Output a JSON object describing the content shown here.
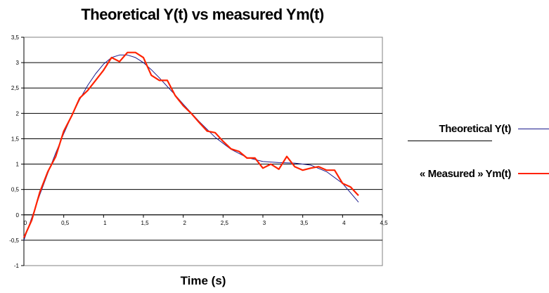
{
  "chart_data": {
    "type": "line",
    "title": "Theoretical Y(t) vs measured Ym(t)",
    "xlabel": "Time (s)",
    "ylabel": "",
    "xlim": [
      0,
      4.5
    ],
    "ylim": [
      -1,
      3.5
    ],
    "x_ticks": [
      "0",
      "0,5",
      "1",
      "1,5",
      "2",
      "2,5",
      "3",
      "3,5",
      "4",
      "4,5"
    ],
    "y_ticks": [
      "-1",
      "-0,5",
      "0",
      "0,5",
      "1",
      "1,5",
      "2",
      "2,5",
      "3",
      "3,5"
    ],
    "grid": true,
    "legend_position": "right",
    "series": [
      {
        "name": "Theoretical Y(t)",
        "color": "#1a1a8c",
        "x": [
          0,
          0.1,
          0.2,
          0.3,
          0.4,
          0.5,
          0.6,
          0.7,
          0.8,
          0.9,
          1.0,
          1.1,
          1.2,
          1.3,
          1.4,
          1.5,
          1.6,
          1.7,
          1.8,
          1.9,
          2.0,
          2.2,
          2.4,
          2.6,
          2.8,
          3.0,
          3.2,
          3.4,
          3.6,
          3.8,
          4.0,
          4.2
        ],
        "y": [
          -0.5,
          -0.05,
          0.4,
          0.82,
          1.22,
          1.6,
          1.95,
          2.27,
          2.55,
          2.78,
          2.97,
          3.1,
          3.15,
          3.15,
          3.1,
          3.0,
          2.86,
          2.7,
          2.53,
          2.36,
          2.18,
          1.84,
          1.53,
          1.29,
          1.13,
          1.05,
          1.03,
          1.02,
          0.98,
          0.85,
          0.62,
          0.25
        ]
      },
      {
        "name": "« Measured » Ym(t)",
        "color": "#ff2200",
        "x": [
          0,
          0.1,
          0.2,
          0.3,
          0.4,
          0.5,
          0.6,
          0.7,
          0.8,
          0.9,
          1.0,
          1.1,
          1.2,
          1.3,
          1.4,
          1.5,
          1.6,
          1.7,
          1.8,
          1.9,
          2.0,
          2.1,
          2.2,
          2.3,
          2.4,
          2.5,
          2.6,
          2.7,
          2.8,
          2.9,
          3.0,
          3.1,
          3.2,
          3.3,
          3.4,
          3.5,
          3.6,
          3.7,
          3.8,
          3.9,
          4.0,
          4.1,
          4.2
        ],
        "y": [
          -0.45,
          -0.1,
          0.45,
          0.85,
          1.15,
          1.65,
          1.95,
          2.3,
          2.45,
          2.65,
          2.85,
          3.1,
          3.02,
          3.2,
          3.2,
          3.1,
          2.75,
          2.65,
          2.65,
          2.35,
          2.15,
          2.0,
          1.82,
          1.65,
          1.62,
          1.45,
          1.3,
          1.25,
          1.12,
          1.12,
          0.92,
          1.0,
          0.9,
          1.15,
          0.95,
          0.88,
          0.92,
          0.95,
          0.88,
          0.88,
          0.62,
          0.55,
          0.38
        ]
      }
    ]
  }
}
